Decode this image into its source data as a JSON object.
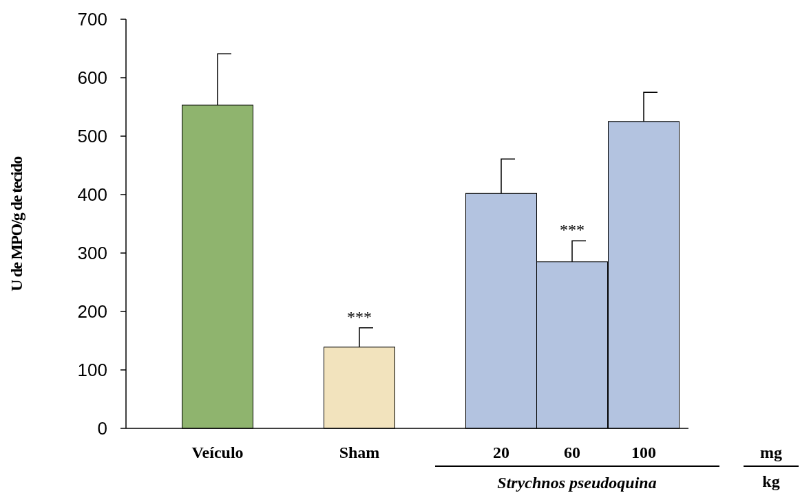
{
  "chart_data": {
    "type": "bar",
    "ylabel": "U de MPO/g de tecido",
    "categories": [
      "Veículo",
      "Sham",
      "20",
      "60",
      "100"
    ],
    "values": [
      553,
      139,
      402,
      285,
      525
    ],
    "errors": [
      [
        553,
        641
      ],
      [
        139,
        172
      ],
      [
        402,
        461
      ],
      [
        285,
        321
      ],
      [
        525,
        575
      ]
    ],
    "colors": [
      "#8fb46e",
      "#f2e3bd",
      "#b3c3e0",
      "#b3c3e0",
      "#b3c3e0"
    ],
    "ylim": [
      0,
      700
    ],
    "yticks": [
      0,
      100,
      200,
      300,
      400,
      500,
      600,
      700
    ],
    "grid": false,
    "annotations": [
      "***",
      "***",
      "Strychnos pseudoquina",
      "mg",
      "kg"
    ]
  }
}
